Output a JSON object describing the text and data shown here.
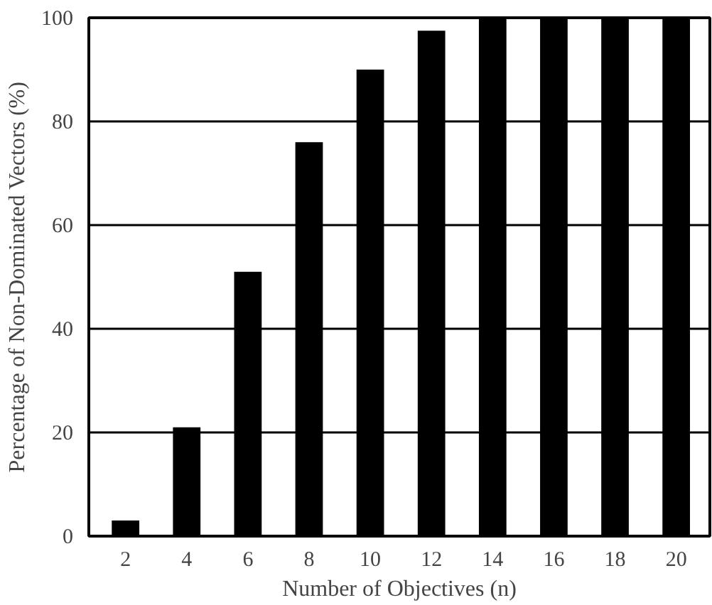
{
  "chart_data": {
    "type": "bar",
    "xlabel": "Number of Objectives (n)",
    "ylabel": "Percentage of Non-Dominated Vectors (%)",
    "categories": [
      "2",
      "4",
      "6",
      "8",
      "10",
      "12",
      "14",
      "16",
      "18",
      "20"
    ],
    "values": [
      3,
      21,
      51,
      76,
      90,
      97.5,
      100,
      100,
      100,
      100
    ],
    "color": "#000000",
    "ylim": [
      0,
      100
    ],
    "yticks": [
      0,
      20,
      40,
      60,
      80,
      100
    ],
    "grid": "y"
  }
}
